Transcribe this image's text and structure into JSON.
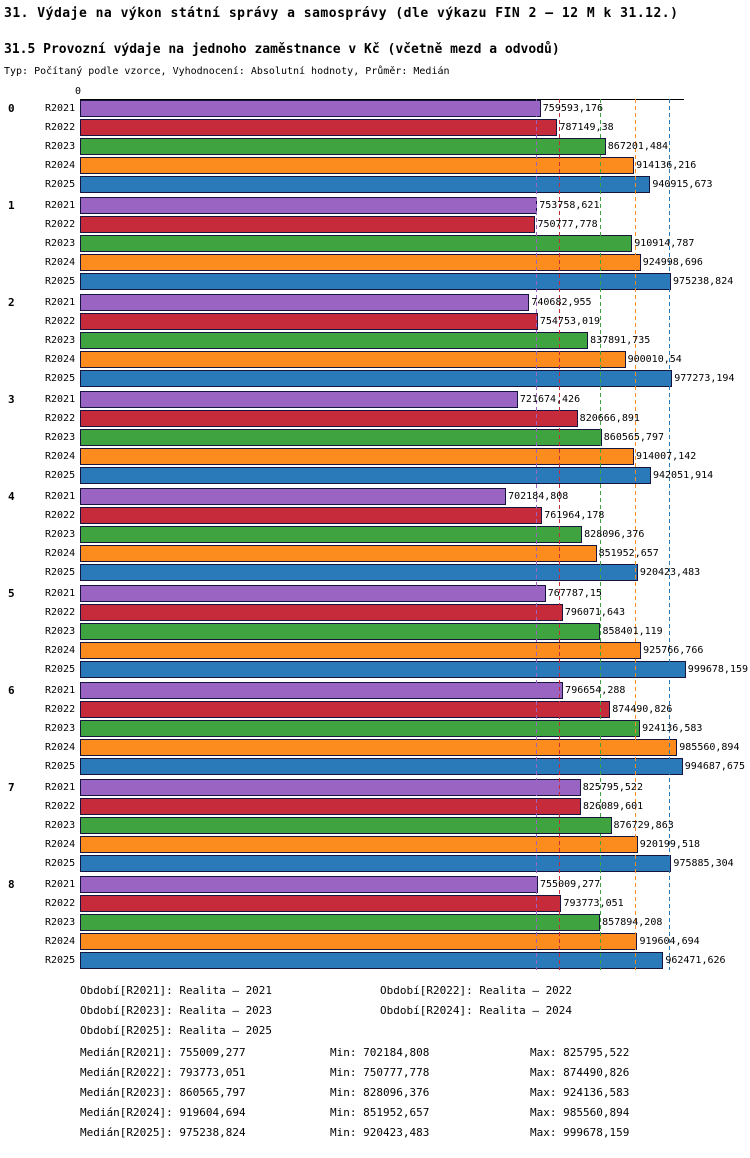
{
  "header": {
    "title": "31. Výdaje na výkon státní správy a samosprávy (dle výkazu FIN 2 – 12 M k 31.12.)",
    "subtitle": "31.5 Provozní výdaje na jednoho zaměstnance v Kč (včetně mezd a odvodů)",
    "meta": "Typ: Počítaný podle vzorce, Vyhodnocení: Absolutní hodnoty, Průměr: Medián"
  },
  "axis": {
    "zero_label": "0"
  },
  "chart_data": {
    "type": "bar",
    "orientation": "horizontal",
    "xlim": [
      0,
      1000000
    ],
    "grid": false,
    "average_type": "Medián",
    "categories": [
      "0",
      "1",
      "2",
      "3",
      "4",
      "5",
      "6",
      "7",
      "8"
    ],
    "series": [
      {
        "name": "R2021",
        "color": "#9a64c2",
        "median": 755009.277,
        "values": [
          759593.176,
          753758.621,
          740682.955,
          721674.426,
          702184.808,
          767787.15,
          796654.288,
          825795.522,
          755009.277
        ],
        "labels": [
          "759593,176",
          "753758,621",
          "740682,955",
          "721674,426",
          "702184,808",
          "767787,15",
          "796654,288",
          "825795,522",
          "755009,277"
        ]
      },
      {
        "name": "R2022",
        "color": "#c62b3b",
        "median": 793773.051,
        "values": [
          787149.38,
          750777.778,
          754753.019,
          820666.891,
          761964.178,
          796071.643,
          874490.826,
          826089.601,
          793773.051
        ],
        "labels": [
          "787149,38",
          "750777,778",
          "754753,019",
          "820666,891",
          "761964,178",
          "796071,643",
          "874490,826",
          "826089,601",
          "793773,051"
        ]
      },
      {
        "name": "R2023",
        "color": "#3fa43f",
        "median": 860565.797,
        "values": [
          867201.484,
          910914.787,
          837891.735,
          860565.797,
          828096.376,
          858401.119,
          924136.583,
          876729.863,
          857894.208
        ],
        "labels": [
          "867201,484",
          "910914,787",
          "837891,735",
          "860565,797",
          "828096,376",
          "858401,119",
          "924136,583",
          "876729,863",
          "857894,208"
        ]
      },
      {
        "name": "R2024",
        "color": "#fb8c1d",
        "median": 919604.694,
        "values": [
          914136.216,
          924998.696,
          900010.54,
          914007.142,
          851952.657,
          925766.766,
          985560.894,
          920199.518,
          919604.694
        ],
        "labels": [
          "914136,216",
          "924998,696",
          "900010,54",
          "914007,142",
          "851952,657",
          "925766,766",
          "985560,894",
          "920199,518",
          "919604,694"
        ]
      },
      {
        "name": "R2025",
        "color": "#2a79b8",
        "median": 975238.824,
        "values": [
          940915.673,
          975238.824,
          977273.194,
          942051.914,
          920423.483,
          999678.159,
          994687.675,
          975885.304,
          962471.626
        ],
        "labels": [
          "940915,673",
          "975238,824",
          "977273,194",
          "942051,914",
          "920423,483",
          "999678,159",
          "994687,675",
          "975885,304",
          "962471,626"
        ]
      }
    ]
  },
  "legend": [
    "Období[R2021]: Realita – 2021",
    "Období[R2022]: Realita – 2022",
    "Období[R2023]: Realita – 2023",
    "Období[R2024]: Realita – 2024",
    "Období[R2025]: Realita – 2025"
  ],
  "stats": [
    {
      "median": "Medián[R2021]: 755009,277",
      "min": "Min: 702184,808",
      "max": "Max: 825795,522"
    },
    {
      "median": "Medián[R2022]: 793773,051",
      "min": "Min: 750777,778",
      "max": "Max: 874490,826"
    },
    {
      "median": "Medián[R2023]: 860565,797",
      "min": "Min: 828096,376",
      "max": "Max: 924136,583"
    },
    {
      "median": "Medián[R2024]: 919604,694",
      "min": "Min: 851952,657",
      "max": "Max: 985560,894"
    },
    {
      "median": "Medián[R2025]: 975238,824",
      "min": "Min: 920423,483",
      "max": "Max: 999678,159"
    }
  ]
}
